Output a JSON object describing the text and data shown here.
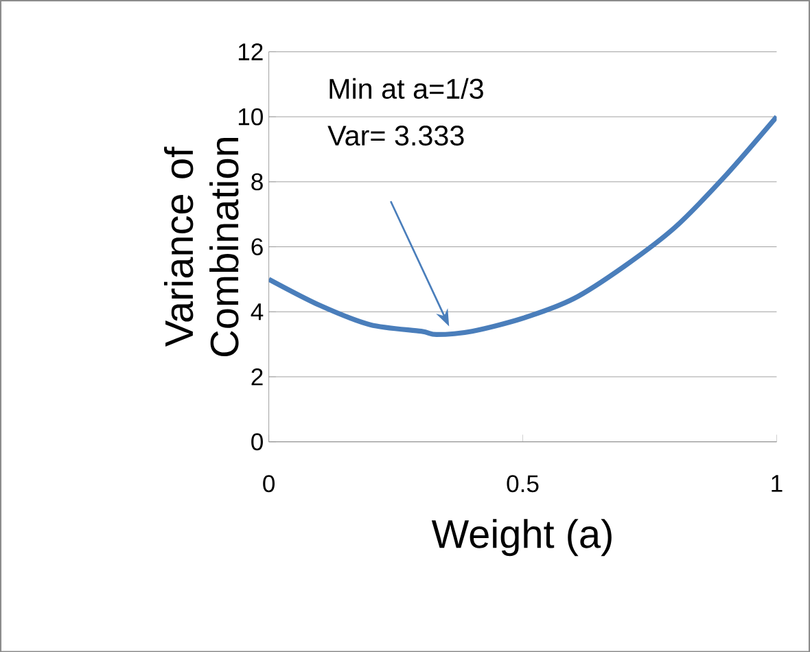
{
  "chart_data": {
    "type": "line",
    "xlabel": "Weight (a)",
    "ylabel": "Variance of Combination",
    "x": [
      0,
      0.1,
      0.2,
      0.3,
      0.33,
      0.4,
      0.5,
      0.6,
      0.7,
      0.8,
      0.9,
      1
    ],
    "series": [
      {
        "color": "#4a7ebb",
        "values": [
          5,
          4.2,
          3.6,
          3.4,
          3.3,
          3.4,
          3.8,
          4.4,
          5.4,
          6.6,
          8.2,
          10
        ]
      }
    ],
    "xlim": [
      0,
      1
    ],
    "xticks": [
      0,
      0.5,
      1
    ],
    "ylim": [
      0,
      12
    ],
    "yticks": [
      0,
      2,
      4,
      6,
      8,
      10,
      12
    ],
    "grid": "y",
    "marker": "none",
    "line_style": "solid",
    "annotations": [
      "Min at a=1/3",
      "Var= 3.333"
    ]
  }
}
